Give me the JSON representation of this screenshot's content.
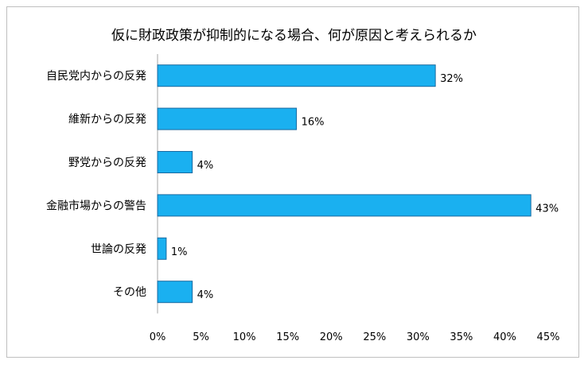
{
  "chart_data": {
    "type": "bar",
    "orientation": "horizontal",
    "title": "仮に財政政策が抑制的になる場合、何が原因と考えられるか",
    "categories": [
      "自民党内からの反発",
      "維新からの反発",
      "野党からの反発",
      "金融市場からの警告",
      "世論の反発",
      "その他"
    ],
    "values": [
      32,
      16,
      4,
      43,
      1,
      4
    ],
    "data_labels": [
      "32%",
      "16%",
      "4%",
      "43%",
      "1%",
      "4%"
    ],
    "xlim": [
      0,
      45
    ],
    "x_ticks": [
      0,
      5,
      10,
      15,
      20,
      25,
      30,
      35,
      40,
      45
    ],
    "x_tick_labels": [
      "0%",
      "5%",
      "10%",
      "15%",
      "20%",
      "25%",
      "30%",
      "35%",
      "40%",
      "45%"
    ],
    "grid": false,
    "legend": "none",
    "colors": {
      "bar_fill": "#1ab0f0",
      "bar_stroke": "#1a6aa0",
      "axis": "#a6a6a6",
      "frame": "#bfbfbf"
    }
  }
}
